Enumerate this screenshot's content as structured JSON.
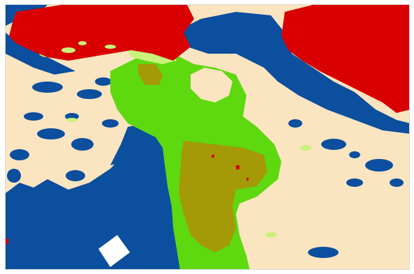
{
  "map": {
    "type": "land-cover-classification",
    "classes": [
      {
        "id": "bare",
        "color": "#fbe4c0"
      },
      {
        "id": "water",
        "color": "#0b4f9e"
      },
      {
        "id": "vegetation",
        "color": "#5ed80f"
      },
      {
        "id": "sparse-vegetation",
        "color": "#c9f27a"
      },
      {
        "id": "cropland",
        "color": "#a49a08"
      },
      {
        "id": "urban",
        "color": "#d80000"
      },
      {
        "id": "nodata",
        "color": "#ffffff"
      }
    ]
  }
}
